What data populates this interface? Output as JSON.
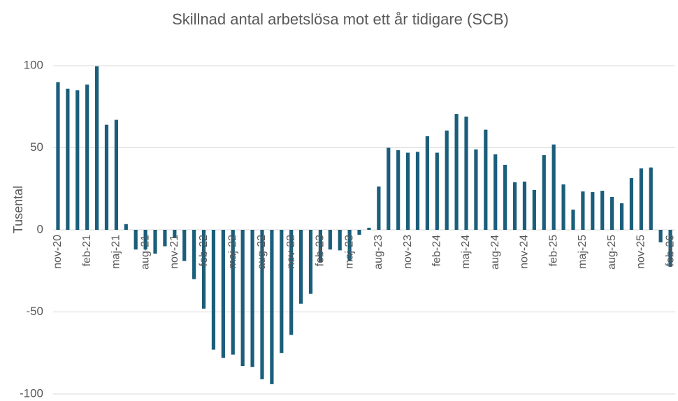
{
  "chart_data": {
    "type": "bar",
    "title": "Skillnad antal arbetslösa mot ett år tidigare (SCB)",
    "y_label": "Tusental",
    "categories": [
      "nov-20",
      null,
      null,
      "feb-21",
      null,
      null,
      "maj-21",
      null,
      null,
      "aug-21",
      null,
      null,
      "nov-21",
      null,
      null,
      "feb-22",
      null,
      null,
      "maj-22",
      null,
      null,
      "aug-22",
      null,
      null,
      "nov-22",
      null,
      null,
      "feb-23",
      null,
      null,
      "maj-23",
      null,
      null,
      "aug-23",
      null,
      null,
      "nov-23",
      null,
      null,
      "feb-24",
      null,
      null,
      "maj-24",
      null,
      null,
      "aug-24",
      null,
      null,
      "nov-24",
      null,
      null,
      "feb-25",
      null,
      null,
      "maj-25",
      null,
      null,
      "aug-25",
      null,
      null,
      "nov-25",
      null,
      null,
      "feb-26"
    ],
    "values": [
      90,
      86,
      85,
      88.5,
      99.6,
      64,
      67,
      3.5,
      -12,
      -12,
      -14.5,
      -10,
      -5,
      -19,
      -30,
      -48,
      -73,
      -78,
      -76,
      -83,
      -83.5,
      -91,
      -94,
      -75,
      -64,
      -45,
      -39,
      -19.5,
      -12,
      -12.5,
      -19,
      -3,
      1.3,
      26.4,
      50,
      48.5,
      47,
      47.5,
      57,
      47,
      60.5,
      70.6,
      69,
      49,
      61,
      46,
      39.6,
      29,
      29.4,
      24.3,
      45.5,
      52,
      27.7,
      12.3,
      23.4,
      23,
      23.8,
      20,
      16.2,
      31.5,
      37.4,
      38,
      -7.6,
      -22.5
    ],
    "color": "#1b5e7b",
    "ylim": [
      -100,
      100
    ],
    "yticks": [
      -100,
      -50,
      0,
      50,
      100
    ],
    "grid": true
  }
}
